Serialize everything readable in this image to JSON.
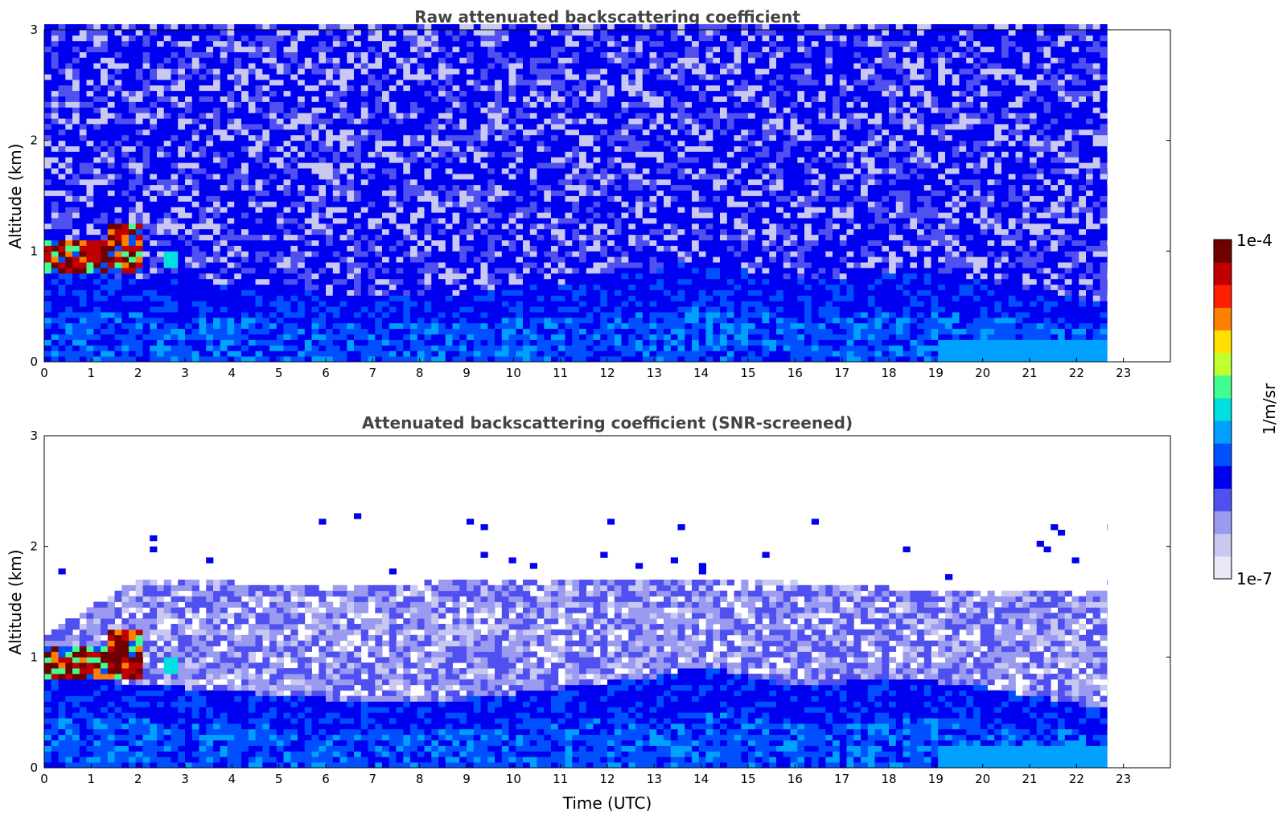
{
  "chart_data": [
    {
      "type": "heatmap",
      "title": "Raw attenuated backscattering coefficient",
      "xlabel": "",
      "ylabel": "Altitude (km)",
      "xlim": [
        0,
        24
      ],
      "ylim": [
        0,
        3
      ],
      "xticks": [
        "0",
        "1",
        "2",
        "3",
        "4",
        "5",
        "6",
        "7",
        "8",
        "9",
        "10",
        "11",
        "12",
        "13",
        "14",
        "15",
        "16",
        "17",
        "18",
        "19",
        "20",
        "21",
        "22",
        "23"
      ],
      "yticks": [
        "0",
        "1",
        "2",
        "3"
      ],
      "data_extent_x": [
        0,
        22.65
      ],
      "grid": false,
      "features": {
        "cloud_layer_altitude_km": [
          0.8,
          1.2
        ],
        "cloud_time_utc": [
          0,
          2.7
        ],
        "boundary_layer_top_km": [
          [
            0,
            0.8
          ],
          [
            3,
            0.7
          ],
          [
            6,
            0.6
          ],
          [
            9,
            0.6
          ],
          [
            11,
            0.7
          ],
          [
            13,
            0.8
          ],
          [
            14,
            0.9
          ],
          [
            16,
            0.7
          ],
          [
            18,
            0.8
          ],
          [
            20,
            0.7
          ],
          [
            22.65,
            0.5
          ]
        ]
      }
    },
    {
      "type": "heatmap",
      "title": "Attenuated backscattering coefficient (SNR-screened)",
      "xlabel": "Time (UTC)",
      "ylabel": "Altitude (km)",
      "xlim": [
        0,
        24
      ],
      "ylim": [
        0,
        3
      ],
      "xticks": [
        "0",
        "1",
        "2",
        "3",
        "4",
        "5",
        "6",
        "7",
        "8",
        "9",
        "10",
        "11",
        "12",
        "13",
        "14",
        "15",
        "16",
        "17",
        "18",
        "19",
        "20",
        "21",
        "22",
        "23"
      ],
      "yticks": [
        "0",
        "1",
        "2",
        "3"
      ],
      "data_extent_x": [
        0,
        22.65
      ],
      "grid": false,
      "features": {
        "cloud_layer_altitude_km": [
          0.8,
          1.2
        ],
        "cloud_time_utc": [
          0,
          2.7
        ],
        "screened_signal_top_km": [
          [
            0,
            1.2
          ],
          [
            2,
            1.7
          ],
          [
            6,
            1.6
          ],
          [
            10,
            1.7
          ],
          [
            14,
            1.7
          ],
          [
            18,
            1.6
          ],
          [
            22.65,
            1.6
          ]
        ]
      }
    }
  ],
  "colorbar": {
    "label": "1/m/sr",
    "max_label": "1e-4",
    "min_label": "1e-7",
    "scale": "log",
    "range": [
      1e-07,
      0.0001
    ],
    "colormap": [
      "#e8e8f8",
      "#c8c8f0",
      "#9a9af0",
      "#5050f0",
      "#0000f0",
      "#0050ff",
      "#00a0ff",
      "#00e0e0",
      "#40ff90",
      "#c0ff30",
      "#ffe000",
      "#ff8000",
      "#ff2000",
      "#c00000",
      "#700000"
    ]
  }
}
